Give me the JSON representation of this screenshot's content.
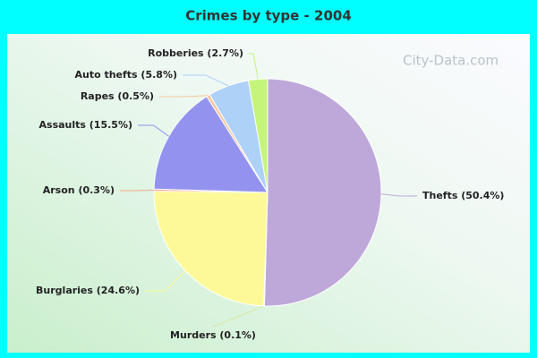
{
  "chart_data": {
    "type": "pie",
    "title": "Crimes by type - 2004",
    "values": [
      50.4,
      0.1,
      24.6,
      0.3,
      15.5,
      0.5,
      5.8,
      2.7
    ],
    "value_labels": [
      "Thefts (50.4%)",
      "Murders (0.1%)",
      "Burglaries (24.6%)",
      "Arson (0.3%)",
      "Assaults (15.5%)",
      "Rapes (0.5%)",
      "Auto thefts (5.8%)",
      "Robberies (2.7%)"
    ],
    "colors": [
      "#bea8d9",
      "#d8e8a0",
      "#fdf998",
      "#f3a58c",
      "#9393ef",
      "#f8c6a0",
      "#aed1f8",
      "#c4f57a"
    ],
    "watermark": "City-Data.com"
  }
}
